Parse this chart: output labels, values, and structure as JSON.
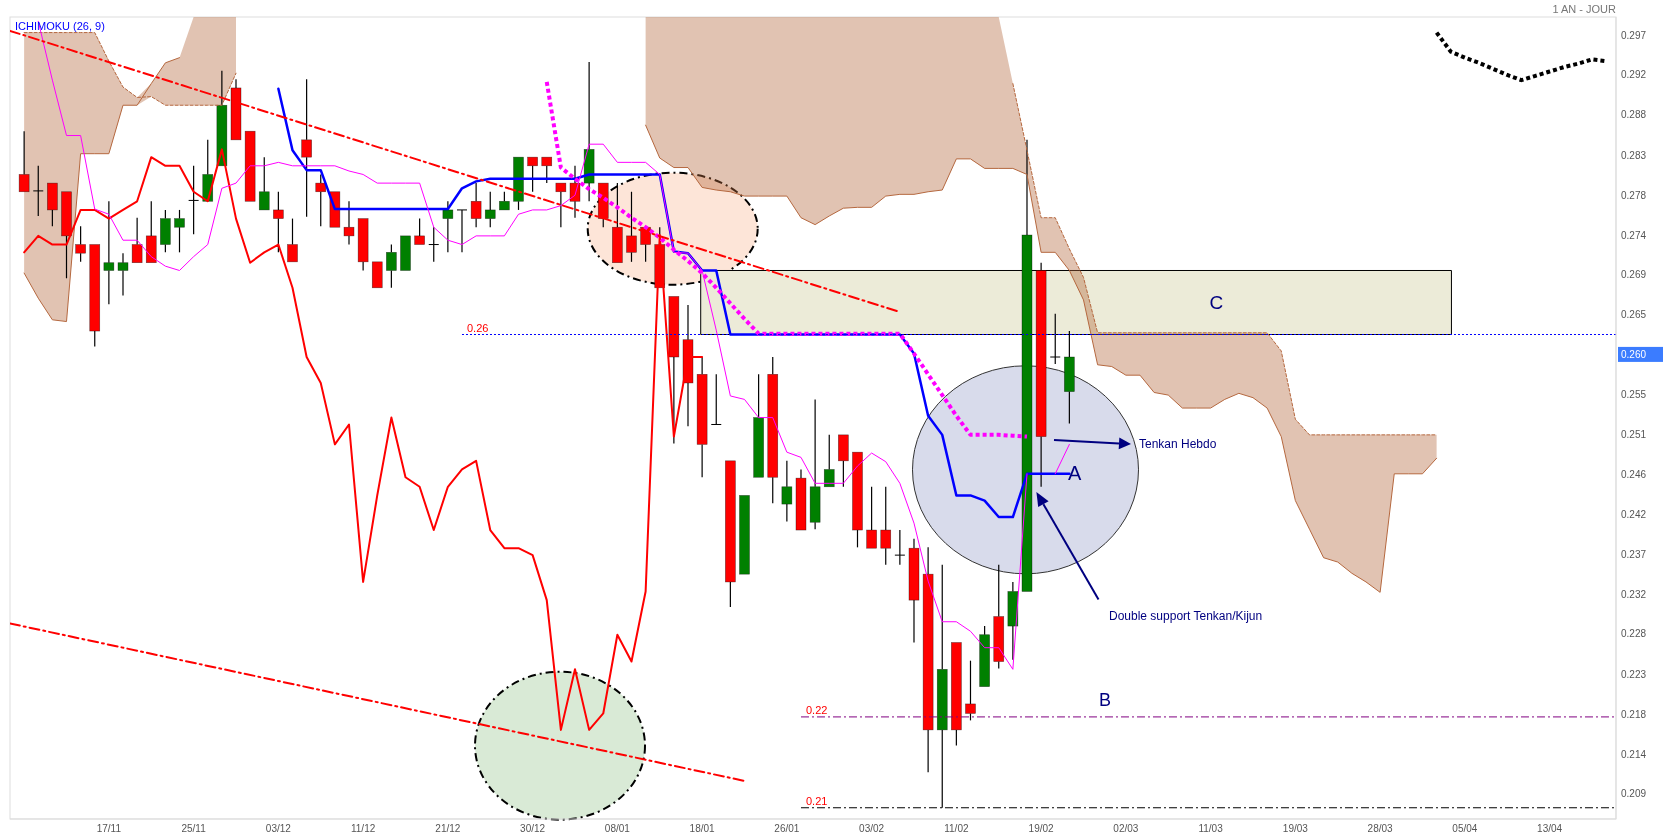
{
  "chart_data": {
    "type": "candlestick",
    "categories": [
      null,
      null,
      null,
      null,
      null,
      null,
      null,
      "17/11",
      null,
      null,
      null,
      null,
      null,
      "25/11",
      null,
      null,
      null,
      null,
      null,
      "03/12",
      null,
      null,
      null,
      null,
      null,
      "11/12",
      null,
      null,
      null,
      null,
      null,
      "21/12",
      null,
      null,
      null,
      null,
      null,
      "30/12",
      null,
      null,
      null,
      null,
      null,
      "08/01",
      null,
      null,
      null,
      null,
      null,
      "18/01",
      null,
      null,
      null,
      null,
      null,
      "26/01",
      null,
      null,
      null,
      null,
      null,
      "03/02",
      null,
      null,
      null,
      null,
      null,
      "11/02",
      null,
      null,
      null,
      null,
      null,
      "19/02",
      null,
      null,
      null,
      null,
      null,
      "02/03",
      null,
      null,
      null,
      null,
      null,
      "11/03",
      null,
      null,
      null,
      null,
      null,
      "19/03",
      null,
      null,
      null,
      null,
      null,
      "28/03",
      null,
      null,
      null,
      null,
      null,
      "05/04",
      null,
      null,
      null,
      null,
      null,
      "13/04",
      null,
      null,
      null,
      null
    ],
    "ohlc": [
      null,
      [
        0.2808,
        0.2858,
        0.2788,
        0.2788
      ],
      [
        0.2789,
        0.2818,
        0.276,
        0.2789
      ],
      [
        0.2798,
        0.2798,
        0.2748,
        0.2767
      ],
      [
        0.2788,
        0.2788,
        0.2688,
        0.2737
      ],
      [
        0.2727,
        0.2748,
        0.2707,
        0.2717
      ],
      [
        0.2727,
        0.2727,
        0.2609,
        0.2627
      ],
      [
        0.2697,
        0.2777,
        0.2658,
        0.2706
      ],
      [
        0.2697,
        0.2717,
        0.2668,
        0.2706
      ],
      [
        0.2727,
        0.2758,
        0.2706,
        0.2706
      ],
      [
        0.2737,
        0.2777,
        0.2706,
        0.2706
      ],
      [
        0.2727,
        0.2767,
        0.2718,
        0.2757
      ],
      [
        0.2747,
        0.2767,
        0.2718,
        0.2757
      ],
      [
        0.2778,
        0.2818,
        0.2739,
        0.2778
      ],
      [
        0.2777,
        0.2848,
        0.2777,
        0.2808
      ],
      [
        0.2818,
        0.2928,
        0.2818,
        0.2888
      ],
      [
        0.2908,
        0.2918,
        0.2848,
        0.2848
      ],
      [
        0.2858,
        0.2858,
        0.2777,
        0.2777
      ],
      [
        0.2767,
        0.2828,
        0.2767,
        0.2788
      ],
      [
        0.2767,
        0.2788,
        0.2718,
        0.2757
      ],
      [
        0.2727,
        0.2757,
        0.2707,
        0.2707
      ],
      [
        0.2848,
        0.2918,
        0.2759,
        0.2828
      ],
      [
        0.2798,
        0.2808,
        0.2748,
        0.2788
      ],
      [
        0.2788,
        0.2788,
        0.2747,
        0.2747
      ],
      [
        0.2747,
        0.2777,
        0.2727,
        0.2737
      ],
      [
        0.2757,
        0.2757,
        0.2697,
        0.2707
      ],
      [
        0.2707,
        0.2707,
        0.2677,
        0.2677
      ],
      [
        0.2697,
        0.2727,
        0.2677,
        0.2718
      ],
      [
        0.2697,
        0.2737,
        0.2697,
        0.2737
      ],
      [
        0.2737,
        0.2757,
        0.2727,
        0.2727
      ],
      [
        0.2727,
        0.2747,
        0.2707,
        0.2727
      ],
      [
        0.2757,
        0.2777,
        0.2718,
        0.2767
      ],
      [
        0.2767,
        0.2767,
        0.2718,
        0.2767
      ],
      [
        0.2777,
        0.2798,
        0.2747,
        0.2757
      ],
      [
        0.2757,
        0.2788,
        0.2747,
        0.2767
      ],
      [
        0.2767,
        0.2788,
        0.2767,
        0.2777
      ],
      [
        0.2777,
        0.2828,
        0.2767,
        0.2828
      ],
      [
        0.2828,
        0.2828,
        0.2788,
        0.2818
      ],
      [
        0.2828,
        0.2828,
        0.2798,
        0.2818
      ],
      [
        0.2798,
        0.2798,
        0.2747,
        0.2788
      ],
      [
        0.2798,
        0.2818,
        0.2758,
        0.2777
      ],
      [
        0.2798,
        0.2938,
        0.2777,
        0.2837
      ],
      [
        0.2798,
        0.2798,
        0.2747,
        0.2757
      ],
      [
        0.2747,
        0.2798,
        0.2706,
        0.2706
      ],
      [
        0.2737,
        0.2788,
        0.2707,
        0.2718
      ],
      [
        0.2747,
        0.2747,
        0.2707,
        0.2727
      ],
      [
        0.2727,
        0.2747,
        0.2677,
        0.2677
      ],
      [
        0.2667,
        0.2667,
        0.2497,
        0.2597
      ],
      [
        0.2617,
        0.2657,
        0.2517,
        0.2567
      ],
      [
        0.2577,
        0.2597,
        0.2458,
        0.2496
      ],
      [
        0.2519,
        0.2577,
        0.2519,
        0.2519
      ],
      [
        0.2477,
        0.2477,
        0.2308,
        0.2337
      ],
      [
        0.2346,
        0.2437,
        0.2346,
        0.2437
      ],
      [
        0.2458,
        0.2577,
        0.2458,
        0.2527
      ],
      [
        0.2577,
        0.2597,
        0.2428,
        0.2458
      ],
      [
        0.2427,
        0.2477,
        0.2407,
        0.2447
      ],
      [
        0.2457,
        0.2467,
        0.2397,
        0.2397
      ],
      [
        0.2406,
        0.2548,
        0.2398,
        0.2447
      ],
      [
        0.2447,
        0.2507,
        0.2447,
        0.2467
      ],
      [
        0.2507,
        0.2507,
        0.2447,
        0.2477
      ],
      [
        0.2487,
        0.2487,
        0.2377,
        0.2397
      ],
      [
        0.2397,
        0.2447,
        0.2376,
        0.2376
      ],
      [
        0.2397,
        0.2447,
        0.2357,
        0.2376
      ],
      [
        0.2368,
        0.2397,
        0.2357,
        0.2368
      ],
      [
        0.2376,
        0.2387,
        0.2267,
        0.2316
      ],
      [
        0.2346,
        0.2377,
        0.2117,
        0.2166
      ],
      [
        0.2166,
        0.2357,
        0.2076,
        0.2236
      ],
      [
        0.2267,
        0.2267,
        0.2148,
        0.2166
      ],
      [
        0.2196,
        0.2246,
        0.2177,
        0.2185
      ],
      [
        0.2216,
        0.2286,
        0.2216,
        0.2276
      ],
      [
        0.2297,
        0.2357,
        0.2237,
        0.2245
      ],
      [
        0.2286,
        0.2337,
        0.2247,
        0.2326
      ],
      [
        0.2326,
        0.2848,
        0.2326,
        0.2738
      ],
      [
        0.2697,
        0.2706,
        0.2447,
        0.2505
      ],
      [
        0.2597,
        0.2647,
        0.2589,
        0.2597
      ],
      [
        0.2557,
        0.2627,
        0.252,
        0.2597
      ],
      null,
      null,
      null,
      null,
      null,
      null,
      null,
      null,
      null,
      null,
      null,
      null,
      null,
      null,
      null,
      null,
      null,
      null,
      null,
      null,
      null,
      null,
      null,
      null,
      null,
      null,
      null,
      null,
      null,
      null,
      null,
      null,
      null,
      null,
      null,
      null,
      null,
      null
    ],
    "colors": [
      null,
      "#ff0000",
      "#000000",
      "#ff0000",
      "#ff0000",
      "#ff0000",
      "#ff0000",
      "#008000",
      "#008000",
      "#ff0000",
      "#ff0000",
      "#008000",
      "#008000",
      "#000000",
      "#008000",
      "#008000",
      "#ff0000",
      "#ff0000",
      "#008000",
      "#ff0000",
      "#ff0000",
      "#ff0000",
      "#ff0000",
      "#ff0000",
      "#ff0000",
      "#ff0000",
      "#ff0000",
      "#008000",
      "#008000",
      "#ff0000",
      "#000000",
      "#008000",
      "#000000",
      "#ff0000",
      "#008000",
      "#008000",
      "#008000",
      "#ff0000",
      "#ff0000",
      "#ff0000",
      "#ff0000",
      "#008000",
      "#ff0000",
      "#ff0000",
      "#ff0000",
      "#ff0000",
      "#ff0000",
      "#ff0000",
      "#ff0000",
      "#ff0000",
      "#000000",
      "#ff0000",
      "#008000",
      "#008000",
      "#ff0000",
      "#008000",
      "#ff0000",
      "#008000",
      "#008000",
      "#ff0000",
      "#ff0000",
      "#ff0000",
      "#ff0000",
      "#000000",
      "#ff0000",
      "#ff0000",
      "#008000",
      "#ff0000",
      "#ff0000",
      "#008000",
      "#ff0000",
      "#008000",
      "#008000",
      "#ff0000",
      "#000000",
      "#008000",
      null,
      null,
      null,
      null,
      null,
      null,
      null,
      null,
      null,
      null,
      null,
      null,
      null,
      null,
      null,
      null,
      null,
      null,
      null,
      null,
      null,
      null,
      null,
      null,
      null,
      null,
      null,
      null,
      null,
      null,
      null,
      null,
      null,
      null,
      null,
      null,
      null,
      null
    ],
    "series": [
      {
        "type": "line",
        "color": "#b5683f",
        "values": [
          null,
          0.2694,
          0.2665,
          0.264,
          0.2638,
          0.2832,
          0.2832,
          0.2832,
          0.2888,
          0.2888,
          0.2913,
          0.2937,
          0.2943,
          null,
          null,
          null,
          null,
          null,
          null,
          null,
          null,
          null,
          null,
          null,
          null,
          null,
          null,
          null,
          null,
          null,
          null,
          null,
          null,
          null,
          null,
          null,
          null,
          null,
          null,
          null,
          null,
          null,
          null,
          null,
          null,
          0.2865,
          0.2827,
          0.2816,
          0.2816,
          0.2793,
          0.279,
          0.2788,
          0.2783,
          0.2783,
          0.2783,
          0.2783,
          0.2758,
          0.275,
          0.276,
          0.2769,
          0.277,
          0.277,
          0.2783,
          0.2785,
          0.2785,
          0.2788,
          0.279,
          0.2826,
          0.2826,
          0.2815,
          0.2815,
          0.2815,
          0.2808,
          0.2718,
          0.2718,
          0.2697,
          0.2663,
          0.2588,
          0.2586,
          0.2576,
          0.2576,
          0.2556,
          0.2553,
          0.2538,
          0.2538,
          0.2538,
          0.2548,
          0.2555,
          0.255,
          0.2538,
          0.2505,
          0.2431,
          0.2398,
          0.2365,
          0.236,
          0.2347,
          0.2337,
          0.2325,
          0.2462,
          0.2462,
          0.2462,
          0.248,
          null,
          null,
          null,
          null,
          null,
          null,
          null,
          null,
          null,
          null,
          null,
          null
        ],
        "lower": [
          null,
          0.2694,
          0.2665,
          0.264,
          0.2638,
          0.2832,
          0.2832,
          0.2832,
          0.2888,
          0.2888,
          0.2898,
          0.2888,
          0.2888,
          0.2888,
          0.2888,
          0.2888,
          0.2925,
          null,
          null,
          null,
          null,
          null,
          null,
          null,
          null,
          null,
          null,
          null,
          null,
          null,
          null,
          null,
          null,
          null,
          null,
          null,
          null,
          null,
          null,
          null,
          null,
          null,
          null,
          null,
          null,
          0.2865,
          0.2827,
          0.2816,
          0.2816,
          0.2793,
          0.279,
          0.2788,
          0.2783,
          0.2783,
          0.2783,
          0.2783,
          0.2758,
          0.275,
          0.276,
          0.2769,
          0.277,
          0.277,
          0.2783,
          0.2785,
          0.2785,
          0.2788,
          0.279,
          0.2826,
          0.2826,
          0.2815,
          0.2815,
          0.2815,
          0.2808,
          0.2718,
          0.2718,
          0.2697,
          0.2663,
          0.2588,
          0.2586,
          0.2576,
          0.2576,
          0.2556,
          0.2553,
          0.2538,
          0.2538,
          0.2538,
          0.2548,
          0.2555,
          0.255,
          0.2538,
          0.2505,
          0.2431,
          0.2398,
          0.2365,
          0.236,
          0.2347,
          0.2337,
          0.2325,
          0.2462,
          0.2462,
          0.2462,
          0.248,
          null,
          null,
          null,
          null,
          null,
          null,
          null,
          null,
          null,
          null,
          null,
          null
        ],
        "upper": [
          null,
          0.2972,
          0.2972,
          0.2972,
          0.2972,
          0.2972,
          0.2972,
          0.2939,
          0.2909,
          0.2897,
          0.2913,
          0.2937,
          0.2943,
          0.299,
          0.299,
          0.299,
          0.299,
          null,
          null,
          null,
          null,
          null,
          null,
          null,
          null,
          null,
          null,
          null,
          null,
          null,
          null,
          null,
          null,
          null,
          null,
          null,
          null,
          null,
          null,
          null,
          null,
          null,
          null,
          null,
          null,
          0.299,
          0.299,
          0.299,
          0.299,
          0.299,
          0.299,
          0.299,
          0.299,
          0.299,
          0.299,
          0.299,
          0.299,
          0.299,
          0.299,
          0.299,
          0.299,
          0.299,
          0.299,
          0.299,
          0.299,
          0.299,
          0.299,
          0.299,
          0.299,
          0.299,
          0.299,
          0.2913,
          0.2836,
          0.2758,
          0.2758,
          0.2722,
          0.2689,
          0.2625,
          0.2625,
          0.2625,
          0.2625,
          0.2625,
          0.2625,
          0.2625,
          0.2625,
          0.2625,
          0.2625,
          0.2625,
          0.2625,
          0.2625,
          0.2604,
          0.2525,
          0.2507,
          0.2507,
          0.2507,
          0.2507,
          0.2507,
          0.2507,
          0.2507,
          0.2507,
          0.2507,
          0.2507,
          null,
          null,
          null,
          null,
          null,
          null,
          null,
          null,
          null,
          null,
          null,
          null
        ]
      },
      {
        "type": "line",
        "color": "#b5683f",
        "line_style": "dashed",
        "values": [
          null,
          0.2972,
          0.2972,
          0.2972,
          0.2972,
          0.2972,
          0.2972,
          0.2939,
          0.2909,
          0.2897,
          0.2898,
          0.2888,
          0.2888,
          0.2888,
          0.2888,
          0.2888,
          0.2925,
          null,
          null,
          null,
          null,
          null,
          null,
          null,
          null,
          null,
          null,
          null,
          null,
          null,
          null,
          null,
          null,
          null,
          null,
          null,
          null,
          null,
          null,
          null,
          null,
          null,
          null,
          null,
          null,
          null,
          null,
          null,
          null,
          null,
          null,
          null,
          null,
          null,
          null,
          null,
          null,
          null,
          null,
          null,
          null,
          null,
          null,
          null,
          null,
          null,
          null,
          null,
          null,
          null,
          null,
          0.2913,
          0.2836,
          0.2758,
          0.2758,
          0.2722,
          0.2689,
          0.2625,
          0.2625,
          0.2625,
          0.2625,
          0.2625,
          0.2625,
          0.2625,
          0.2625,
          0.2625,
          0.2625,
          0.2625,
          0.2625,
          0.2625,
          0.2604,
          0.2525,
          0.2507,
          0.2507,
          0.2507,
          0.2507,
          0.2507,
          0.2507,
          0.2507,
          0.2507,
          0.2507,
          0.2507,
          null,
          null,
          null,
          null,
          null,
          null,
          null,
          null,
          null,
          null,
          null,
          null
        ]
      },
      {
        "type": "line",
        "color": "#ff0000",
        "values": [
          null,
          0.2718,
          0.2737,
          0.2727,
          0.2727,
          0.2767,
          0.2767,
          0.2757,
          0.2767,
          0.2777,
          0.2828,
          0.2818,
          0.2818,
          0.2788,
          0.2777,
          0.2837,
          0.2757,
          0.2706,
          0.2718,
          0.2727,
          0.2677,
          0.2597,
          0.2567,
          0.2496,
          0.2519,
          0.2337,
          0.2437,
          0.2527,
          0.2458,
          0.2447,
          0.2397,
          0.2447,
          0.2467,
          0.2477,
          0.2397,
          0.2376,
          0.2376,
          0.2368,
          0.2316,
          0.2166,
          0.2236,
          0.2166,
          0.2185,
          0.2276,
          0.2245,
          0.2326,
          0.2738,
          0.2505,
          0.2597,
          0.2597,
          null,
          null,
          null,
          null,
          null,
          null,
          null,
          null,
          null,
          null,
          null,
          null,
          null,
          null,
          null,
          null,
          null,
          null,
          null,
          null,
          null,
          null,
          null,
          null,
          null,
          null,
          null,
          null,
          null,
          null,
          null,
          null,
          null,
          null,
          null,
          null,
          null,
          null,
          null,
          null,
          null,
          null,
          null,
          null,
          null,
          null,
          null,
          null,
          null,
          null,
          null,
          null,
          null,
          null,
          null,
          null,
          null,
          null,
          null,
          null,
          null,
          null,
          null,
          null
        ]
      },
      {
        "type": "line",
        "color": "#0000ff",
        "values": [
          null,
          null,
          null,
          null,
          null,
          null,
          null,
          null,
          null,
          null,
          null,
          null,
          null,
          null,
          null,
          null,
          null,
          null,
          null,
          0.2907,
          0.2836,
          0.2813,
          0.2813,
          0.2768,
          0.2768,
          0.2768,
          0.2768,
          0.2768,
          0.2768,
          0.2768,
          0.2768,
          0.2768,
          0.2792,
          0.28,
          0.2803,
          0.2803,
          0.2803,
          0.2803,
          0.2803,
          0.2803,
          0.2803,
          0.2808,
          0.2808,
          0.2808,
          0.2808,
          0.2808,
          0.2808,
          0.2719,
          0.2717,
          0.2697,
          0.2697,
          0.2623,
          0.2623,
          0.2623,
          0.2623,
          0.2623,
          0.2623,
          0.2623,
          0.2623,
          0.2623,
          0.2623,
          0.2623,
          0.2623,
          0.2623,
          0.2601,
          0.2529,
          0.2507,
          0.2437,
          0.2437,
          0.2431,
          0.2412,
          0.2412,
          0.2462,
          0.2462,
          0.2462,
          0.2462,
          null,
          null,
          null,
          null,
          null,
          null,
          null,
          null,
          null,
          null,
          null,
          null,
          null,
          null,
          null,
          null,
          null,
          null,
          null,
          null,
          null,
          null,
          null,
          null,
          null,
          null,
          null,
          null,
          null,
          null,
          null,
          null,
          null,
          null,
          null,
          null,
          null,
          null
        ]
      },
      {
        "type": "line",
        "color": "#ff00ff",
        "values": [
          null,
          null,
          0.2985,
          0.2917,
          0.2853,
          0.2853,
          0.2768,
          0.2762,
          0.2732,
          0.2732,
          0.2713,
          0.2702,
          0.2697,
          0.2713,
          0.2727,
          0.2792,
          0.2798,
          0.2818,
          0.2818,
          0.2822,
          0.2818,
          0.2818,
          0.2818,
          0.2818,
          0.2812,
          0.2808,
          0.2798,
          0.2798,
          0.2798,
          0.2798,
          0.2747,
          0.2732,
          0.2727,
          0.2737,
          0.2737,
          0.2737,
          0.2762,
          0.2767,
          0.2767,
          0.2772,
          0.2784,
          0.2843,
          0.2843,
          0.2822,
          0.2822,
          0.2822,
          0.2808,
          0.2718,
          0.2717,
          0.2697,
          0.2628,
          0.2552,
          0.2548,
          0.2527,
          0.2527,
          0.2487,
          0.2481,
          0.2451,
          0.2451,
          0.2451,
          0.2471,
          0.2486,
          0.2476,
          0.2451,
          0.2405,
          0.2338,
          0.2291,
          0.2291,
          0.228,
          0.2261,
          0.2261,
          0.2236,
          0.2462,
          null,
          0.2462,
          0.2496,
          null,
          null,
          null,
          null,
          null,
          null,
          null,
          null,
          null,
          null,
          null,
          null,
          null,
          null,
          null,
          null,
          null,
          null,
          null,
          null,
          null,
          null,
          null,
          null,
          null,
          null,
          null,
          null,
          null,
          null,
          null,
          null,
          null,
          null,
          null,
          null,
          null,
          null
        ]
      },
      {
        "type": "line",
        "color": "#ff00ff",
        "line_style": "dotted",
        "values": [
          null,
          null,
          null,
          null,
          null,
          null,
          null,
          null,
          null,
          null,
          null,
          null,
          null,
          null,
          null,
          null,
          null,
          null,
          null,
          null,
          null,
          null,
          null,
          null,
          null,
          null,
          null,
          null,
          null,
          null,
          null,
          null,
          null,
          null,
          null,
          null,
          null,
          null,
          0.2915,
          0.2816,
          0.2803,
          0.2791,
          0.2781,
          0.277,
          0.2758,
          0.2747,
          0.2735,
          0.2721,
          0.2708,
          0.2694,
          0.2677,
          0.2659,
          0.2641,
          0.2624,
          0.2624,
          0.2624,
          0.2624,
          0.2624,
          0.2624,
          0.2624,
          0.2624,
          0.2624,
          0.2624,
          0.2624,
          0.2601,
          0.2577,
          0.2553,
          0.2529,
          0.2507,
          0.2507,
          0.2507,
          0.2506,
          0.2505,
          null,
          null,
          null,
          null,
          null,
          null,
          null,
          null,
          null,
          null,
          null,
          null,
          null,
          null,
          null,
          null,
          null,
          null,
          null,
          null,
          null,
          null,
          null,
          null,
          null,
          null,
          null,
          null,
          null,
          null,
          null,
          null,
          null,
          null,
          null,
          null,
          null,
          null,
          null,
          null,
          null
        ]
      },
      {
        "type": "line",
        "color": "#000000",
        "line_style": "dotted",
        "values": [
          null,
          null,
          null,
          null,
          null,
          null,
          null,
          null,
          null,
          null,
          null,
          null,
          null,
          null,
          null,
          null,
          null,
          null,
          null,
          null,
          null,
          null,
          null,
          null,
          null,
          null,
          null,
          null,
          null,
          null,
          null,
          null,
          null,
          null,
          null,
          null,
          null,
          null,
          null,
          null,
          null,
          null,
          null,
          null,
          null,
          null,
          null,
          null,
          null,
          null,
          null,
          null,
          null,
          null,
          null,
          null,
          null,
          null,
          null,
          null,
          null,
          null,
          null,
          null,
          null,
          null,
          null,
          null,
          null,
          null,
          null,
          null,
          null,
          null,
          null,
          null,
          null,
          null,
          null,
          null,
          null,
          null,
          null,
          null,
          null,
          null,
          null,
          null,
          null,
          null,
          null,
          null,
          null,
          null,
          null,
          null,
          null,
          null,
          null,
          null,
          null,
          0.2972,
          0.295,
          0.2943,
          0.2937,
          0.293,
          0.2923,
          0.2917,
          0.2922,
          0.2927,
          0.2932,
          0.2936,
          0.2941,
          0.2939
        ]
      },
      {
        "type": "line",
        "color": "#ff0000",
        "line_style": "dashed",
        "values": [
          0.2974,
          null,
          null,
          null,
          null,
          null,
          null,
          null,
          null,
          null,
          null,
          null,
          null,
          null,
          null,
          null,
          null,
          null,
          null,
          null,
          null,
          null,
          null,
          null,
          null,
          null,
          null,
          null,
          null,
          null,
          null,
          null,
          null,
          null,
          null,
          null,
          null,
          null,
          null,
          null,
          null,
          null,
          null,
          null,
          null,
          null,
          null,
          null,
          null,
          null,
          null,
          null,
          null,
          null,
          null,
          null,
          null,
          null,
          null,
          null,
          null,
          null,
          null,
          0.2649,
          null,
          null,
          null,
          null,
          null,
          null,
          null,
          null,
          null,
          null,
          null,
          null,
          null,
          null,
          null,
          null,
          null,
          null,
          null,
          null,
          null,
          null,
          null,
          null,
          null,
          null,
          null,
          null,
          null,
          null,
          null,
          null,
          null,
          null,
          null,
          null,
          null,
          null,
          null,
          null,
          null,
          null,
          null,
          null,
          null,
          null,
          null,
          null,
          null,
          null
        ]
      },
      {
        "type": "line",
        "color": "#ff0000",
        "line_style": "dashed",
        "values": [
          0.2289,
          null,
          null,
          null,
          null,
          null,
          null,
          null,
          null,
          null,
          null,
          null,
          null,
          null,
          null,
          null,
          null,
          null,
          null,
          null,
          null,
          null,
          null,
          null,
          null,
          null,
          null,
          null,
          null,
          null,
          null,
          null,
          null,
          null,
          null,
          null,
          null,
          null,
          null,
          null,
          null,
          null,
          null,
          null,
          null,
          null,
          null,
          null,
          null,
          null,
          null,
          null,
          0.2107,
          null,
          null,
          null,
          null,
          null,
          null,
          null,
          null,
          null,
          null,
          null,
          null,
          null,
          null,
          null,
          null,
          null,
          null,
          null,
          null,
          null,
          null,
          null,
          null,
          null,
          null,
          null,
          null,
          null,
          null,
          null,
          null,
          null,
          null,
          null,
          null,
          null,
          null,
          null,
          null,
          null,
          null,
          null,
          null,
          null,
          null,
          null,
          null,
          null,
          null,
          null,
          null,
          null,
          null,
          null,
          null,
          null,
          null,
          null,
          null,
          null
        ]
      }
    ],
    "ylim": [
      0.2063,
      0.299
    ],
    "yticks": [
      {
        "value": 0.2092,
        "label": "0.209"
      },
      {
        "value": 0.2138,
        "label": "0.214"
      },
      {
        "value": 0.2184,
        "label": "0.218"
      },
      {
        "value": 0.223,
        "label": "0.223"
      },
      {
        "value": 0.2277,
        "label": "0.228"
      },
      {
        "value": 0.2323,
        "label": "0.232"
      },
      {
        "value": 0.2369,
        "label": "0.237"
      },
      {
        "value": 0.2415,
        "label": "0.242"
      },
      {
        "value": 0.2461,
        "label": "0.246"
      },
      {
        "value": 0.2507,
        "label": "0.251"
      },
      {
        "value": 0.2554,
        "label": "0.255"
      },
      {
        "value": 0.26,
        "label": "0.260"
      },
      {
        "value": 0.2646,
        "label": "0.265"
      },
      {
        "value": 0.2692,
        "label": "0.269"
      },
      {
        "value": 0.2738,
        "label": "0.274"
      },
      {
        "value": 0.2784,
        "label": "0.278"
      },
      {
        "value": 0.283,
        "label": "0.283"
      },
      {
        "value": 0.2877,
        "label": "0.288"
      },
      {
        "value": 0.2923,
        "label": "0.292"
      },
      {
        "value": 0.2969,
        "label": "0.297"
      }
    ],
    "ref_lines": [
      {
        "axis": "y",
        "value": 0.2623,
        "label": "0.26",
        "color": "#0000ff",
        "line_style": "dotted"
      },
      {
        "axis": "y",
        "value": 0.2181,
        "label": "0.22",
        "color": "#800080",
        "line_style": "dashed"
      },
      {
        "axis": "y",
        "value": 0.2076,
        "label": "0.21",
        "color": "#000000",
        "line_style": "dashed"
      }
    ],
    "bands": [
      {
        "axis": "y",
        "from": 0.2623,
        "to": 0.2697,
        "label": "C",
        "color": "#ecebd8"
      }
    ],
    "annotations": [
      "ICHIMOKU (26, 9)",
      "1 AN - JOUR",
      "Tenkan Hebdo",
      "Double support Tenkan/Kijun",
      "A",
      "B"
    ]
  }
}
